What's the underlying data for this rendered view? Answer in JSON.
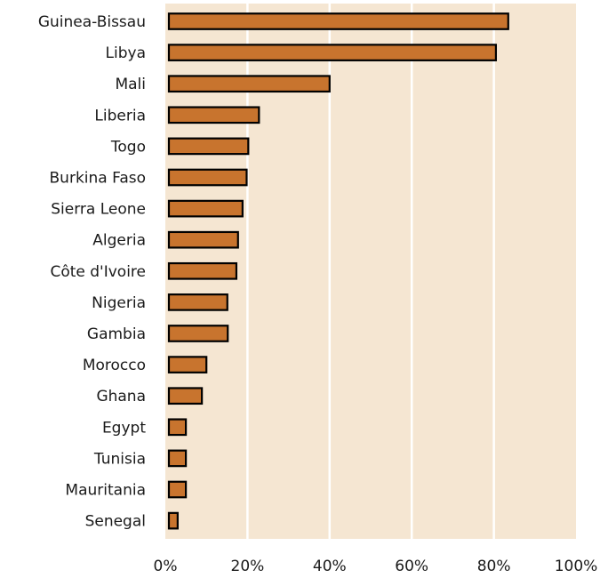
{
  "chart_data": {
    "type": "bar",
    "orientation": "horizontal",
    "categories": [
      "Guinea-Bissau",
      "Libya",
      "Mali",
      "Liberia",
      "Togo",
      "Burkina Faso",
      "Sierra Leone",
      "Algeria",
      "Côte d'Ivoire",
      "Nigeria",
      "Gambia",
      "Morocco",
      "Ghana",
      "Egypt",
      "Tunisia",
      "Mauritania",
      "Senegal"
    ],
    "values": [
      83.5,
      80.5,
      40,
      22.8,
      20.2,
      19.8,
      18.8,
      17.7,
      17.3,
      15.1,
      15.2,
      10,
      8.9,
      5,
      5,
      5,
      3
    ],
    "xlim": [
      0,
      100
    ],
    "x_tick_labels": [
      "0%",
      "20%",
      "40%",
      "60%",
      "80%",
      "100%"
    ],
    "title": "",
    "xlabel": "",
    "ylabel": "",
    "grid": true,
    "colors": {
      "plot_background": "#f5e6d2",
      "bar_fill": "#c8742e",
      "bar_stroke": "#000000",
      "grid": "#ffffff"
    }
  }
}
